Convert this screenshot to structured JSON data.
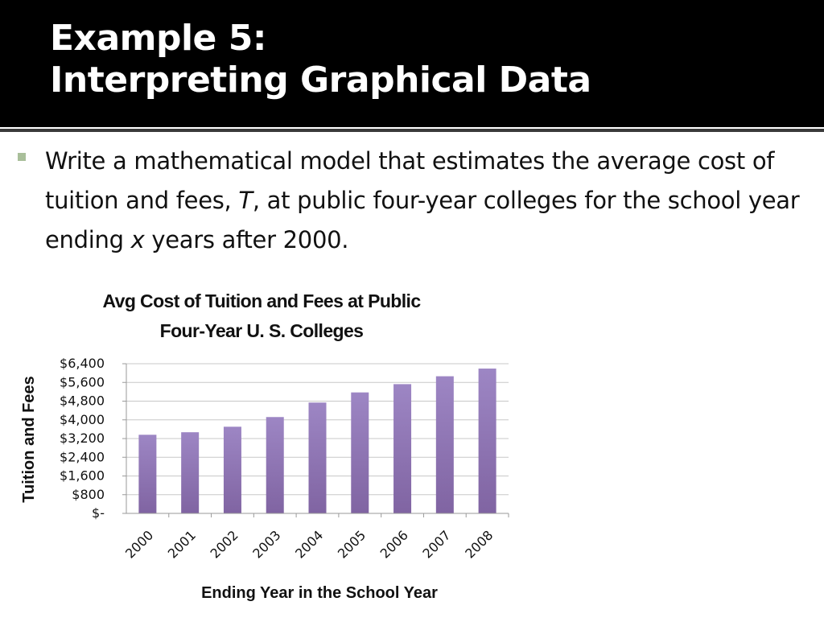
{
  "slide": {
    "title_line1": "Example 5:",
    "title_line2": "Interpreting Graphical Data"
  },
  "bullet": {
    "marker_color": "#a9bf9a",
    "text_part1": "Write a mathematical model that estimates the average cost of tuition and fees, ",
    "var_t": "T",
    "text_part2": ", at public four-year colleges for the school year ending ",
    "var_x": "x",
    "text_part3": " years after 2000."
  },
  "chart_data": {
    "type": "bar",
    "title_line1": "Avg Cost of Tuition and Fees at Public",
    "title_line2": "Four-Year U. S. Colleges",
    "xlabel": "Ending Year in the School Year",
    "ylabel": "Tuition and Fees",
    "categories": [
      "2000",
      "2001",
      "2002",
      "2003",
      "2004",
      "2005",
      "2006",
      "2007",
      "2008"
    ],
    "values": [
      3362,
      3470,
      3706,
      4120,
      4740,
      5173,
      5527,
      5864,
      6192
    ],
    "ylim": [
      0,
      6400
    ],
    "yticks": [
      0,
      800,
      1600,
      2400,
      3200,
      4000,
      4800,
      5600,
      6400
    ],
    "ytick_labels": [
      "$-",
      "$800",
      "$1,600",
      "$2,400",
      "$3,200",
      "$4,000",
      "$4,800",
      "$5,600",
      "$6,400"
    ],
    "grid": true,
    "bar_color": "#8064a2"
  }
}
